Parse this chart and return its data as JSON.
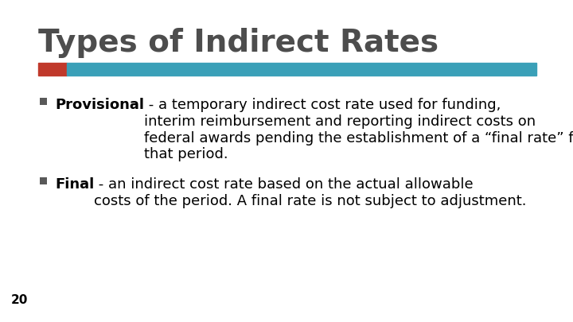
{
  "title": "Types of Indirect Rates",
  "title_color": "#4d4d4d",
  "title_fontsize": 28,
  "background_color": "#ffffff",
  "bar_red_color": "#c0392b",
  "bar_teal_color": "#3aa0b8",
  "page_number": "20",
  "page_number_color": "#000000",
  "page_number_fontsize": 11,
  "bullet1_bold": "Provisional",
  "bullet1_rest": " - a temporary indirect cost rate used for funding,\ninterim reimbursement and reporting indirect costs on\nfederal awards pending the establishment of a “final rate” for\nthat period.",
  "bullet2_bold": "Final",
  "bullet2_rest": " - an indirect cost rate based on the actual allowable\ncosts of the period. A final rate is not subject to adjustment.",
  "bullet_fontsize": 13,
  "text_color": "#000000",
  "bullet_box_color": "#595959"
}
